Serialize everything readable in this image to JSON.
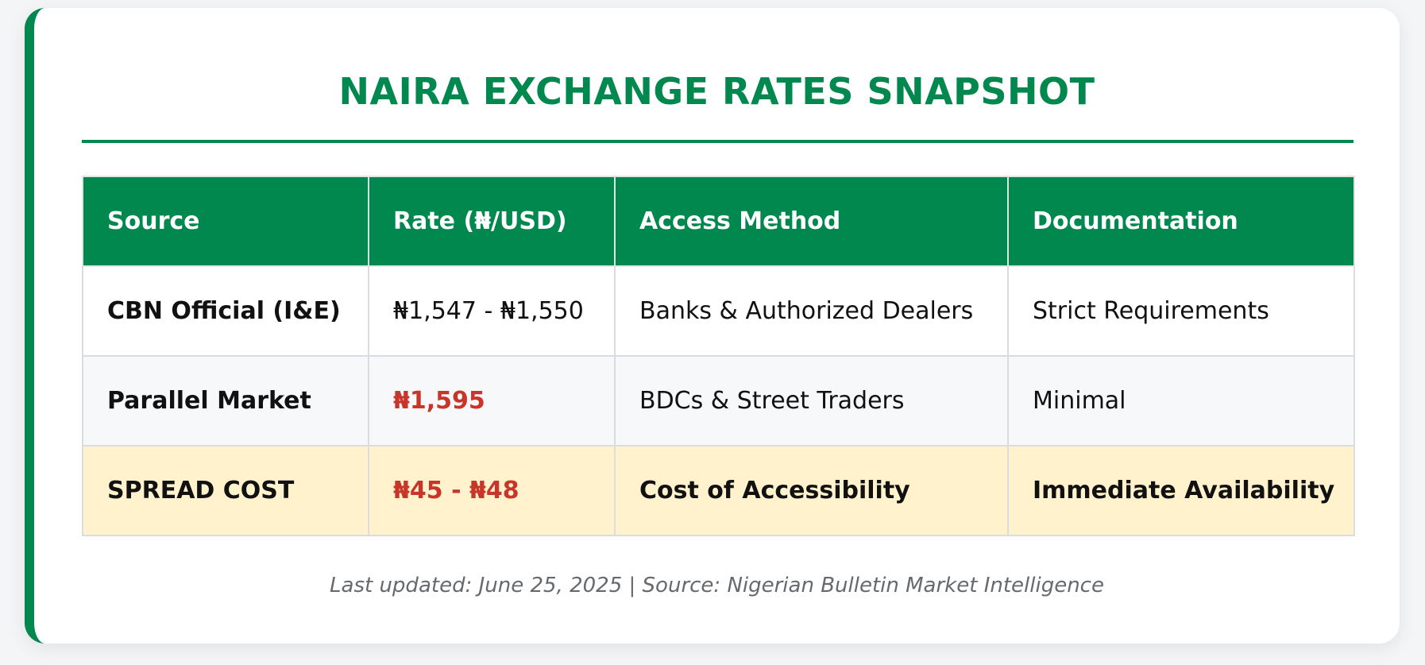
{
  "title": "NAIRA EXCHANGE RATES SNAPSHOT",
  "colors": {
    "accent": "#00884f",
    "highlight_row": "#fff2cc",
    "alert_text": "#c8352b"
  },
  "table": {
    "headers": [
      "Source",
      "Rate (₦/USD)",
      "Access Method",
      "Documentation"
    ],
    "rows": [
      {
        "source": "CBN Official (I&E)",
        "rate": "₦1,547 - ₦1,550",
        "access": "Banks & Authorized Dealers",
        "documentation": "Strict Requirements"
      },
      {
        "source": "Parallel Market",
        "rate": "₦1,595",
        "access": "BDCs & Street Traders",
        "documentation": "Minimal"
      },
      {
        "source": "SPREAD COST",
        "rate": "₦45 - ₦48",
        "access": "Cost of Accessibility",
        "documentation": "Immediate Availability"
      }
    ]
  },
  "footer": "Last updated: June 25, 2025 | Source: Nigerian Bulletin Market Intelligence"
}
